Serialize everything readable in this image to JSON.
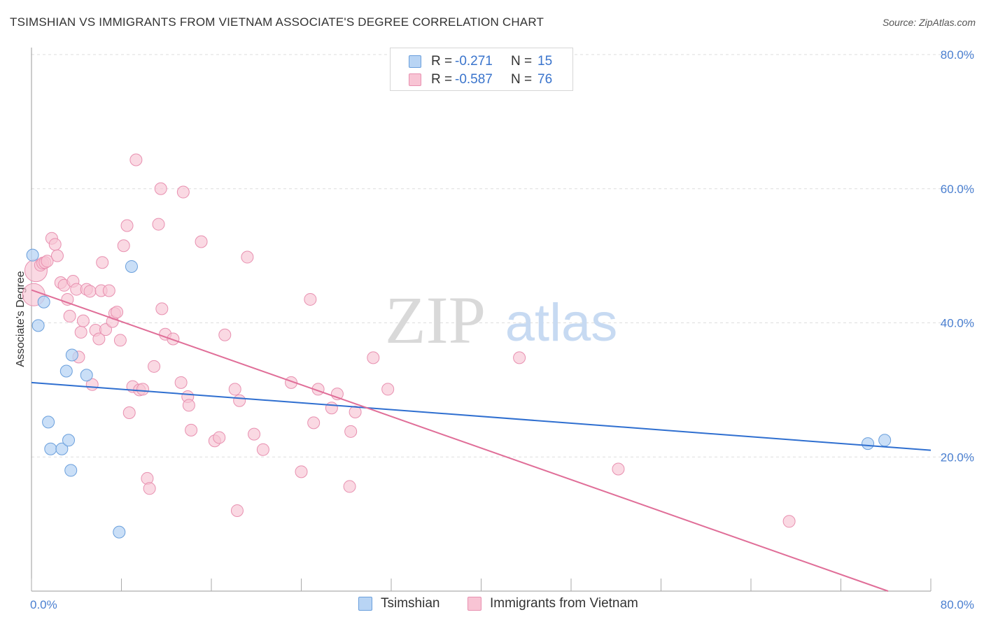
{
  "header": {
    "title": "TSIMSHIAN VS IMMIGRANTS FROM VIETNAM ASSOCIATE'S DEGREE CORRELATION CHART",
    "source": "Source: ZipAtlas.com"
  },
  "legend": {
    "rows": [
      {
        "r_label": "R =",
        "r_value": "-0.271",
        "n_label": "N =",
        "n_value": "15"
      },
      {
        "r_label": "R =",
        "r_value": "-0.587",
        "n_label": "N =",
        "n_value": "76"
      }
    ]
  },
  "bottom_legend": {
    "series1": "Tsimshian",
    "series2": "Immigrants from Vietnam"
  },
  "colors": {
    "blue_fill": "#b8d4f4",
    "blue_stroke": "#6a9fdc",
    "blue_line": "#2f6fd0",
    "pink_fill": "#f8c4d4",
    "pink_stroke": "#e890b0",
    "pink_line": "#e06e98",
    "grid": "#dddddd",
    "watermark_zip": "#d9d9d9",
    "watermark_atlas": "#c7daf2"
  },
  "watermark": {
    "part1": "ZIP",
    "part2": "atlas"
  },
  "chart_data": {
    "type": "scatter",
    "title": "TSIMSHIAN VS IMMIGRANTS FROM VIETNAM ASSOCIATE'S DEGREE CORRELATION CHART",
    "xlabel": "",
    "ylabel": "Associate's Degree",
    "xlim": [
      0,
      80
    ],
    "ylim": [
      0,
      80
    ],
    "x_tick_labels": [
      "0.0%",
      "80.0%"
    ],
    "y_ticks": [
      20,
      40,
      60,
      80
    ],
    "y_tick_labels": [
      "20.0%",
      "40.0%",
      "60.0%",
      "80.0%"
    ],
    "grid": true,
    "series": [
      {
        "name": "Tsimshian",
        "R": -0.271,
        "N": 15,
        "trend": {
          "x": [
            0,
            80
          ],
          "y": [
            31.1,
            21.0
          ]
        },
        "points": [
          {
            "x": 0.1,
            "y": 50.1
          },
          {
            "x": 0.6,
            "y": 39.6
          },
          {
            "x": 1.1,
            "y": 43.1
          },
          {
            "x": 1.5,
            "y": 25.2
          },
          {
            "x": 1.7,
            "y": 21.2
          },
          {
            "x": 2.7,
            "y": 21.2
          },
          {
            "x": 3.1,
            "y": 32.8
          },
          {
            "x": 3.3,
            "y": 22.5
          },
          {
            "x": 3.5,
            "y": 18.0
          },
          {
            "x": 3.6,
            "y": 35.2
          },
          {
            "x": 4.9,
            "y": 32.2
          },
          {
            "x": 7.8,
            "y": 8.8
          },
          {
            "x": 8.9,
            "y": 48.4
          },
          {
            "x": 74.4,
            "y": 22.0
          },
          {
            "x": 75.9,
            "y": 22.5
          }
        ]
      },
      {
        "name": "Immigrants from Vietnam",
        "R": -0.587,
        "N": 76,
        "trend": {
          "x": [
            0,
            76.2
          ],
          "y": [
            44.9,
            0.0
          ]
        },
        "points": [
          {
            "x": 0.2,
            "y": 44.2,
            "big": true
          },
          {
            "x": 0.4,
            "y": 47.8,
            "big": true
          },
          {
            "x": 0.8,
            "y": 48.6
          },
          {
            "x": 1.0,
            "y": 48.9
          },
          {
            "x": 1.2,
            "y": 49.0
          },
          {
            "x": 1.4,
            "y": 49.2
          },
          {
            "x": 1.8,
            "y": 52.6
          },
          {
            "x": 2.1,
            "y": 51.7
          },
          {
            "x": 2.3,
            "y": 50.0
          },
          {
            "x": 2.6,
            "y": 46.0
          },
          {
            "x": 2.9,
            "y": 45.6
          },
          {
            "x": 3.2,
            "y": 43.5
          },
          {
            "x": 3.4,
            "y": 41.0
          },
          {
            "x": 3.7,
            "y": 46.2
          },
          {
            "x": 4.0,
            "y": 45.0
          },
          {
            "x": 4.2,
            "y": 34.9
          },
          {
            "x": 4.4,
            "y": 38.6
          },
          {
            "x": 4.6,
            "y": 40.3
          },
          {
            "x": 4.9,
            "y": 45.0
          },
          {
            "x": 5.2,
            "y": 44.7
          },
          {
            "x": 5.4,
            "y": 30.8
          },
          {
            "x": 5.7,
            "y": 38.9
          },
          {
            "x": 6.0,
            "y": 37.6
          },
          {
            "x": 6.2,
            "y": 44.8
          },
          {
            "x": 6.3,
            "y": 49.0
          },
          {
            "x": 6.6,
            "y": 39.0
          },
          {
            "x": 6.9,
            "y": 44.8
          },
          {
            "x": 7.2,
            "y": 40.2
          },
          {
            "x": 7.4,
            "y": 41.4
          },
          {
            "x": 7.6,
            "y": 41.6
          },
          {
            "x": 7.9,
            "y": 37.4
          },
          {
            "x": 8.2,
            "y": 51.5
          },
          {
            "x": 8.5,
            "y": 54.5
          },
          {
            "x": 8.7,
            "y": 26.6
          },
          {
            "x": 9.0,
            "y": 30.5
          },
          {
            "x": 9.3,
            "y": 64.3
          },
          {
            "x": 9.6,
            "y": 30.0
          },
          {
            "x": 9.9,
            "y": 30.1
          },
          {
            "x": 10.3,
            "y": 16.8
          },
          {
            "x": 10.5,
            "y": 15.3
          },
          {
            "x": 10.9,
            "y": 33.5
          },
          {
            "x": 11.3,
            "y": 54.7
          },
          {
            "x": 11.5,
            "y": 60.0
          },
          {
            "x": 11.6,
            "y": 42.1
          },
          {
            "x": 11.9,
            "y": 38.3
          },
          {
            "x": 12.6,
            "y": 37.6
          },
          {
            "x": 13.3,
            "y": 31.1
          },
          {
            "x": 13.5,
            "y": 59.5
          },
          {
            "x": 13.9,
            "y": 29.0
          },
          {
            "x": 14.0,
            "y": 27.7
          },
          {
            "x": 14.2,
            "y": 24.0
          },
          {
            "x": 15.1,
            "y": 52.1
          },
          {
            "x": 16.3,
            "y": 22.4
          },
          {
            "x": 16.7,
            "y": 22.9
          },
          {
            "x": 17.2,
            "y": 38.2
          },
          {
            "x": 18.1,
            "y": 30.1
          },
          {
            "x": 18.5,
            "y": 28.4
          },
          {
            "x": 18.3,
            "y": 12.0
          },
          {
            "x": 19.2,
            "y": 49.8
          },
          {
            "x": 19.8,
            "y": 23.4
          },
          {
            "x": 20.6,
            "y": 21.1
          },
          {
            "x": 23.1,
            "y": 31.1
          },
          {
            "x": 24.0,
            "y": 17.8
          },
          {
            "x": 24.8,
            "y": 43.5
          },
          {
            "x": 25.1,
            "y": 25.1
          },
          {
            "x": 25.5,
            "y": 30.1
          },
          {
            "x": 26.7,
            "y": 27.3
          },
          {
            "x": 27.2,
            "y": 29.4
          },
          {
            "x": 28.3,
            "y": 15.6
          },
          {
            "x": 28.4,
            "y": 23.8
          },
          {
            "x": 28.8,
            "y": 26.7
          },
          {
            "x": 30.4,
            "y": 34.8
          },
          {
            "x": 31.7,
            "y": 30.1
          },
          {
            "x": 43.4,
            "y": 34.8
          },
          {
            "x": 52.2,
            "y": 18.2
          },
          {
            "x": 67.4,
            "y": 10.4
          }
        ]
      }
    ]
  }
}
